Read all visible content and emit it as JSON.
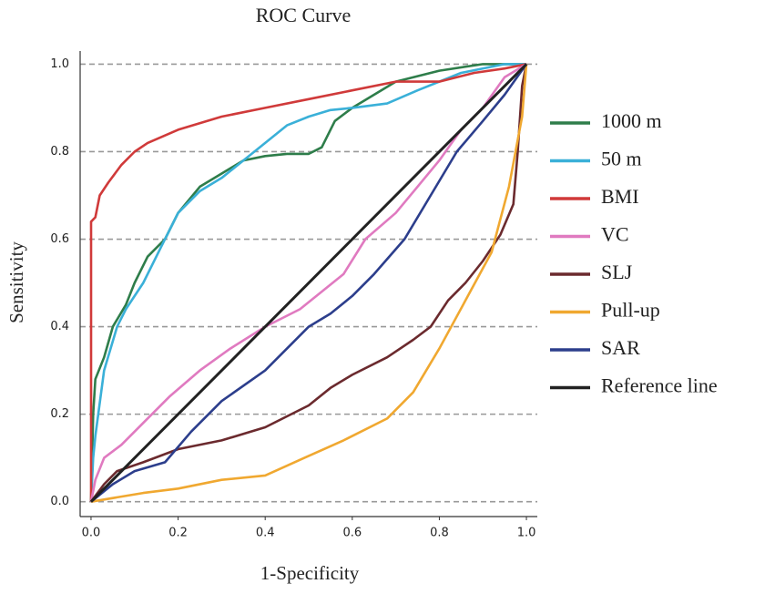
{
  "chart_data": {
    "type": "line",
    "title": "ROC Curve",
    "x_label": "1-Specificity",
    "y_label": "Sensitivity",
    "xlim": [
      -0.025,
      1.025
    ],
    "ylim": [
      -0.034,
      1.03
    ],
    "xticks": [
      {
        "value": 0,
        "label": "0.0"
      },
      {
        "value": 0.2,
        "label": "0.2"
      },
      {
        "value": 0.4,
        "label": "0.4"
      },
      {
        "value": 0.6,
        "label": "0.6"
      },
      {
        "value": 0.8,
        "label": "0.8"
      },
      {
        "value": 1,
        "label": "1.0"
      }
    ],
    "yticks": [
      {
        "value": 0,
        "label": "0.0"
      },
      {
        "value": 0.2,
        "label": "0.2"
      },
      {
        "value": 0.4,
        "label": "0.4"
      },
      {
        "value": 0.6,
        "label": "0.6"
      },
      {
        "value": 0.8,
        "label": "0.8"
      },
      {
        "value": 1,
        "label": "1.0"
      }
    ],
    "grid": true,
    "legend": "right",
    "series": [
      {
        "name": "1000 m",
        "color": "#2e7d4a",
        "x": [
          0,
          0.005,
          0.01,
          0.03,
          0.05,
          0.08,
          0.1,
          0.13,
          0.17,
          0.2,
          0.25,
          0.3,
          0.35,
          0.4,
          0.45,
          0.5,
          0.53,
          0.56,
          0.6,
          0.65,
          0.7,
          0.8,
          0.9,
          1
        ],
        "values": [
          0,
          0.2,
          0.28,
          0.33,
          0.4,
          0.45,
          0.5,
          0.56,
          0.6,
          0.66,
          0.72,
          0.75,
          0.78,
          0.79,
          0.795,
          0.795,
          0.81,
          0.87,
          0.9,
          0.93,
          0.96,
          0.985,
          1,
          1
        ]
      },
      {
        "name": "50 m",
        "color": "#3ab0d8",
        "x": [
          0,
          0.005,
          0.01,
          0.03,
          0.06,
          0.08,
          0.12,
          0.16,
          0.2,
          0.25,
          0.3,
          0.35,
          0.4,
          0.45,
          0.5,
          0.55,
          0.6,
          0.68,
          0.75,
          0.85,
          0.95,
          1
        ],
        "values": [
          0,
          0.1,
          0.15,
          0.3,
          0.4,
          0.44,
          0.5,
          0.58,
          0.66,
          0.71,
          0.74,
          0.78,
          0.82,
          0.86,
          0.88,
          0.895,
          0.9,
          0.91,
          0.94,
          0.98,
          1,
          1
        ]
      },
      {
        "name": "BMI",
        "color": "#d03a3a",
        "x": [
          0,
          0,
          0.01,
          0.02,
          0.04,
          0.07,
          0.1,
          0.13,
          0.2,
          0.3,
          0.4,
          0.5,
          0.6,
          0.7,
          0.8,
          0.88,
          0.95,
          1
        ],
        "values": [
          0,
          0.64,
          0.65,
          0.7,
          0.73,
          0.77,
          0.8,
          0.82,
          0.85,
          0.88,
          0.9,
          0.92,
          0.94,
          0.96,
          0.96,
          0.98,
          0.99,
          1
        ]
      },
      {
        "name": "VC",
        "color": "#e07ac0",
        "x": [
          0,
          0.01,
          0.03,
          0.07,
          0.12,
          0.18,
          0.25,
          0.32,
          0.4,
          0.48,
          0.53,
          0.58,
          0.63,
          0.7,
          0.75,
          0.8,
          0.85,
          0.9,
          0.95,
          1
        ],
        "values": [
          0,
          0.05,
          0.1,
          0.13,
          0.18,
          0.24,
          0.3,
          0.35,
          0.4,
          0.44,
          0.48,
          0.52,
          0.6,
          0.66,
          0.72,
          0.78,
          0.85,
          0.9,
          0.97,
          1
        ]
      },
      {
        "name": "SLJ",
        "color": "#6b2a2e",
        "x": [
          0,
          0.03,
          0.06,
          0.12,
          0.2,
          0.3,
          0.4,
          0.5,
          0.55,
          0.6,
          0.68,
          0.74,
          0.78,
          0.82,
          0.86,
          0.9,
          0.94,
          0.97,
          0.98,
          0.99,
          1
        ],
        "values": [
          0,
          0.04,
          0.07,
          0.09,
          0.12,
          0.14,
          0.17,
          0.22,
          0.26,
          0.29,
          0.33,
          0.37,
          0.4,
          0.46,
          0.5,
          0.55,
          0.61,
          0.68,
          0.8,
          0.95,
          1
        ]
      },
      {
        "name": "Pull-up",
        "color": "#f0a830",
        "x": [
          0,
          0.06,
          0.12,
          0.2,
          0.3,
          0.4,
          0.49,
          0.58,
          0.68,
          0.74,
          0.8,
          0.86,
          0.92,
          0.96,
          0.99,
          1
        ],
        "values": [
          0,
          0.01,
          0.02,
          0.03,
          0.05,
          0.06,
          0.1,
          0.14,
          0.19,
          0.25,
          0.35,
          0.46,
          0.57,
          0.72,
          0.88,
          1
        ]
      },
      {
        "name": "SAR",
        "color": "#2c3e8c",
        "x": [
          0,
          0.05,
          0.1,
          0.17,
          0.23,
          0.3,
          0.4,
          0.45,
          0.5,
          0.55,
          0.6,
          0.65,
          0.72,
          0.78,
          0.84,
          0.9,
          0.95,
          1
        ],
        "values": [
          0,
          0.04,
          0.07,
          0.09,
          0.16,
          0.23,
          0.3,
          0.35,
          0.4,
          0.43,
          0.47,
          0.52,
          0.6,
          0.7,
          0.8,
          0.87,
          0.93,
          1
        ]
      },
      {
        "name": "Reference line",
        "color": "#222222",
        "x": [
          0,
          1
        ],
        "values": [
          0,
          1
        ]
      }
    ]
  }
}
